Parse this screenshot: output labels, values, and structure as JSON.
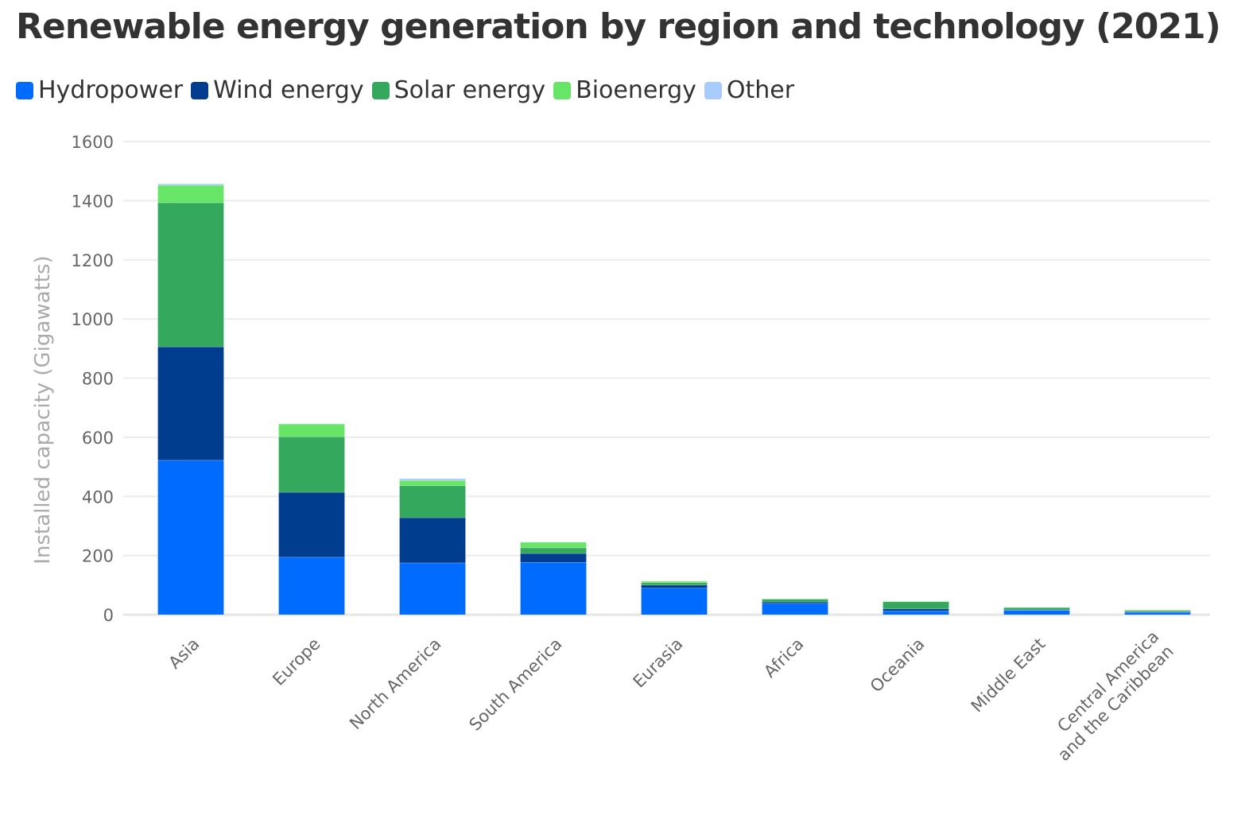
{
  "chart_data": {
    "type": "bar",
    "stacked": true,
    "title": "Renewable energy generation by region and technology (2021)",
    "ylabel": "Installed capacity (Gigawatts)",
    "xlabel": "",
    "ylim": [
      0,
      1600
    ],
    "yticks": [
      0,
      200,
      400,
      600,
      800,
      1000,
      1200,
      1400,
      1600
    ],
    "grid": true,
    "legend_position": "top-left",
    "categories": [
      "Asia",
      "Europe",
      "North America",
      "South America",
      "Eurasia",
      "Africa",
      "Oceania",
      "Middle East",
      "Central America and the Caribbean"
    ],
    "category_lines": [
      [
        "Asia"
      ],
      [
        "Europe"
      ],
      [
        "North America"
      ],
      [
        "South America"
      ],
      [
        "Eurasia"
      ],
      [
        "Africa"
      ],
      [
        "Oceania"
      ],
      [
        "Middle East"
      ],
      [
        "Central America",
        "and the Caribbean"
      ]
    ],
    "series": [
      {
        "name": "Hydropower",
        "color": "#006cff",
        "values": [
          522,
          194,
          175,
          177,
          90,
          38,
          13,
          15,
          8
        ]
      },
      {
        "name": "Wind energy",
        "color": "#003d8f",
        "values": [
          384,
          220,
          153,
          30,
          10,
          5,
          7,
          1,
          2
        ]
      },
      {
        "name": "Solar energy",
        "color": "#34a85d",
        "values": [
          487,
          188,
          108,
          19,
          8,
          9,
          24,
          8,
          3
        ]
      },
      {
        "name": "Bioenergy",
        "color": "#66e566",
        "values": [
          59,
          43,
          18,
          19,
          5,
          2,
          1,
          1,
          3
        ]
      },
      {
        "name": "Other",
        "color": "#a9ccff",
        "values": [
          5,
          1,
          6,
          1,
          0,
          0,
          0,
          0,
          0
        ]
      }
    ]
  }
}
